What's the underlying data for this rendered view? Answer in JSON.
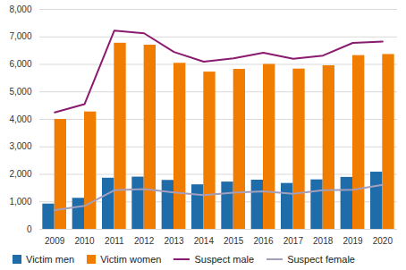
{
  "chart_data": {
    "type": "bar",
    "categories": [
      "2009",
      "2010",
      "2011",
      "2012",
      "2013",
      "2014",
      "2015",
      "2016",
      "2017",
      "2018",
      "2019",
      "2020"
    ],
    "series": [
      {
        "name": "Victim men",
        "type": "bar",
        "color": "#1f6cab",
        "values": [
          920,
          1130,
          1860,
          1900,
          1780,
          1620,
          1720,
          1790,
          1670,
          1800,
          1890,
          2080
        ]
      },
      {
        "name": "Victim women",
        "type": "bar",
        "color": "#f07c00",
        "values": [
          4000,
          4270,
          6770,
          6700,
          6040,
          5720,
          5820,
          6000,
          5830,
          5950,
          6320,
          6360
        ]
      },
      {
        "name": "Suspect male",
        "type": "line",
        "color": "#8a1b6e",
        "values": [
          4250,
          4550,
          7230,
          7130,
          6450,
          6100,
          6220,
          6420,
          6200,
          6320,
          6780,
          6830
        ]
      },
      {
        "name": "Suspect female",
        "type": "line",
        "color": "#a39fbd",
        "values": [
          700,
          850,
          1420,
          1460,
          1340,
          1240,
          1330,
          1380,
          1290,
          1420,
          1440,
          1620
        ]
      }
    ],
    "ylim": [
      0,
      8000
    ],
    "yticks": [
      0,
      {
        "value": 1000,
        "label": "1,000"
      },
      {
        "value": 2000,
        "label": "2,000"
      },
      {
        "value": 3000,
        "label": "3,000"
      },
      {
        "value": 4000,
        "label": "4,000"
      },
      {
        "value": 5000,
        "label": "5,000"
      },
      {
        "value": 6000,
        "label": "6,000"
      },
      {
        "value": 7000,
        "label": "7,000"
      },
      {
        "value": 8000,
        "label": "8,000"
      }
    ],
    "grid": true,
    "legend": "bottom"
  }
}
